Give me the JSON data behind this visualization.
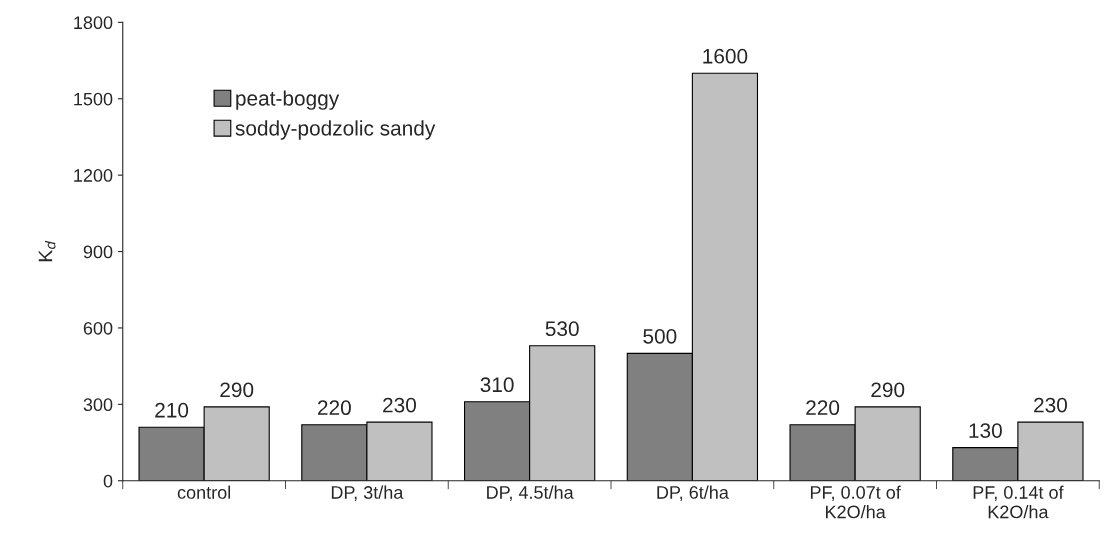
{
  "chart_data": {
    "type": "bar",
    "ylabel": "K$_{d}$",
    "categories": [
      "control",
      "DP, 3t/ha",
      "DP, 4.5t/ha",
      "DP, 6t/ha",
      "PF, 0.07t of\nK2O/ha",
      "PF, 0.14t of\nK2O/ha"
    ],
    "series": [
      {
        "name": "peat-boggy",
        "color": "#808080",
        "values": [
          210,
          220,
          310,
          500,
          220,
          130
        ]
      },
      {
        "name": "soddy-podzolic sandy",
        "color": "#c0c0c0",
        "values": [
          290,
          230,
          530,
          1600,
          290,
          230
        ]
      }
    ],
    "ylim": [
      0,
      1800
    ],
    "yticks": [
      0,
      300,
      600,
      900,
      1200,
      1500,
      1800
    ],
    "data_labels": true,
    "legend": "top left",
    "grid": false
  }
}
